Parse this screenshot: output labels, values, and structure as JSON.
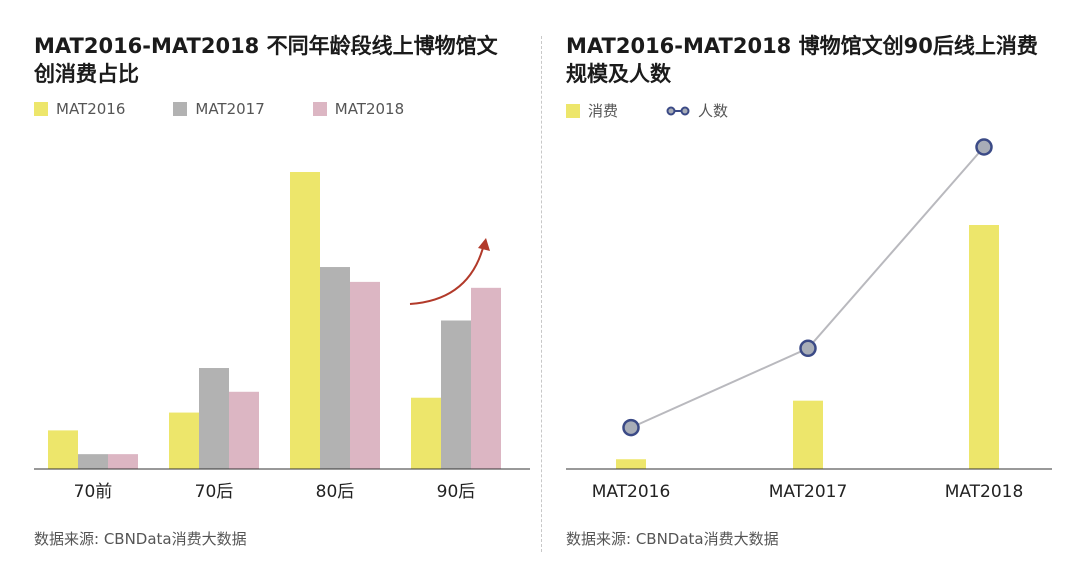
{
  "left_panel": {
    "title_line1": "MAT2016-MAT2018 不同年龄段线上博物馆文",
    "title_line2": "创消费占比",
    "legend": [
      "MAT2016",
      "MAT2017",
      "MAT2018"
    ],
    "source": "数据来源: CBNData消费大数据"
  },
  "right_panel": {
    "title_line1": "MAT2016-MAT2018 博物馆文创90后线上消费",
    "title_line2": "规模及人数",
    "legend": [
      "消费",
      "人数"
    ],
    "source": "数据来源: CBNData消费大数据"
  },
  "colors": {
    "mat2016": "#ede66b",
    "mat2017": "#b2b2b2",
    "mat2018": "#dcb6c3",
    "line": "#b9b9be",
    "marker_fill": "#a8adb7",
    "marker_stroke": "#3b4a86",
    "arrow": "#b23a2a",
    "axis": "#333333"
  },
  "chart_data": [
    {
      "type": "bar",
      "title": "MAT2016-MAT2018 不同年龄段线上博物馆文创消费占比",
      "categories": [
        "70前",
        "70后",
        "80后",
        "90后"
      ],
      "series": [
        {
          "name": "MAT2016",
          "values": [
            13,
            19,
            100,
            24
          ]
        },
        {
          "name": "MAT2017",
          "values": [
            5,
            34,
            68,
            50
          ]
        },
        {
          "name": "MAT2018",
          "values": [
            5,
            26,
            63,
            61
          ]
        }
      ],
      "ylim": [
        0,
        100
      ],
      "note": "values are relative shares (no axis shown)"
    },
    {
      "type": "bar+line",
      "title": "MAT2016-MAT2018 博物馆文创90后线上消费规模及人数",
      "categories": [
        "MAT2016",
        "MAT2017",
        "MAT2018"
      ],
      "series": [
        {
          "name": "消费",
          "type": "bar",
          "values": [
            4,
            28,
            100
          ]
        },
        {
          "name": "人数",
          "type": "line",
          "values": [
            8,
            34,
            100
          ]
        }
      ],
      "ylim": [
        0,
        100
      ],
      "note": "values are relative (no axis shown)"
    }
  ]
}
